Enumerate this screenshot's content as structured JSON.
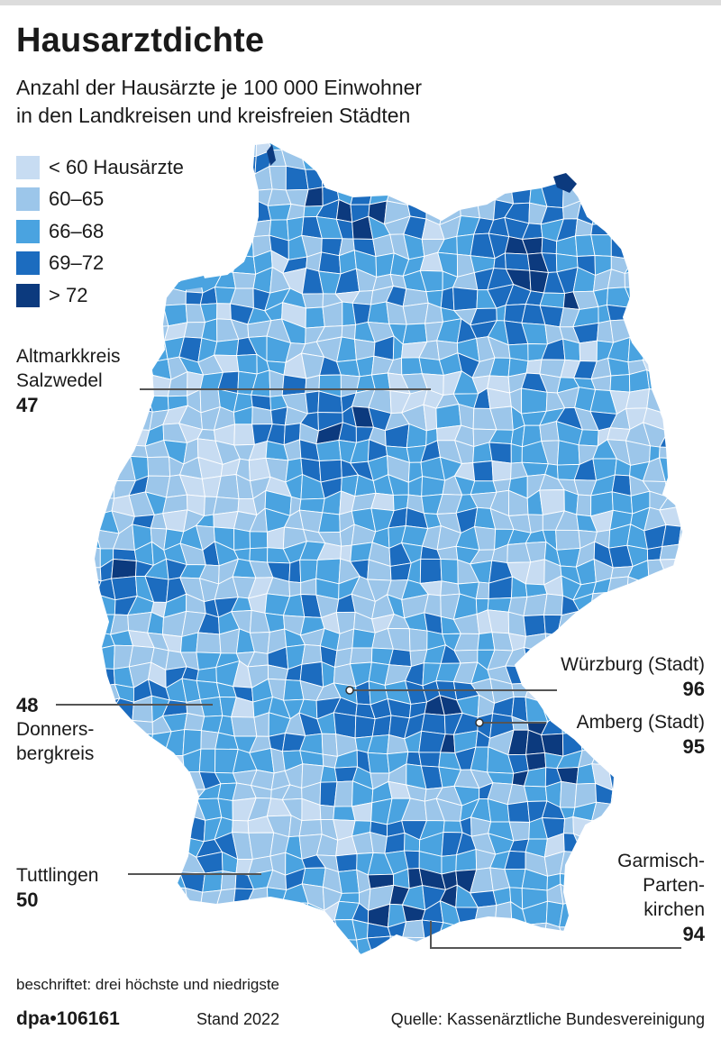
{
  "title": "Hausarztdichte",
  "subtitle_line1": "Anzahl der Hausärzte je 100 000 Einwohner",
  "subtitle_line2": "in den Landkreisen und kreisfreien Städten",
  "legend": [
    {
      "label": "< 60 Hausärzte",
      "color": "#c7dcf2"
    },
    {
      "label": "60–65",
      "color": "#9cc6ea"
    },
    {
      "label": "66–68",
      "color": "#4aa3e0"
    },
    {
      "label": "69–72",
      "color": "#1c6cbf"
    },
    {
      "label": "> 72",
      "color": "#0c3a7e"
    }
  ],
  "callouts": {
    "salzwedel": {
      "name_line1": "Altmarkkreis",
      "name_line2": "Salzwedel",
      "value": "47"
    },
    "donnersberg": {
      "value": "48",
      "name_line1": "Donners-",
      "name_line2": "bergkreis"
    },
    "tuttlingen": {
      "name": "Tuttlingen",
      "value": "50"
    },
    "wuerzburg": {
      "name": "Würzburg (Stadt)",
      "value": "96"
    },
    "amberg": {
      "name": "Amberg (Stadt)",
      "value": "95"
    },
    "garmisch": {
      "name_line1": "Garmisch-",
      "name_line2": "Parten-",
      "name_line3": "kirchen",
      "value": "94"
    }
  },
  "footnote": "beschriftet: drei höchste und niedrigste",
  "footer": {
    "agency": "dpa•106161",
    "stand": "Stand 2022",
    "source": "Quelle: Kassenärztliche Bundesvereinigung"
  }
}
